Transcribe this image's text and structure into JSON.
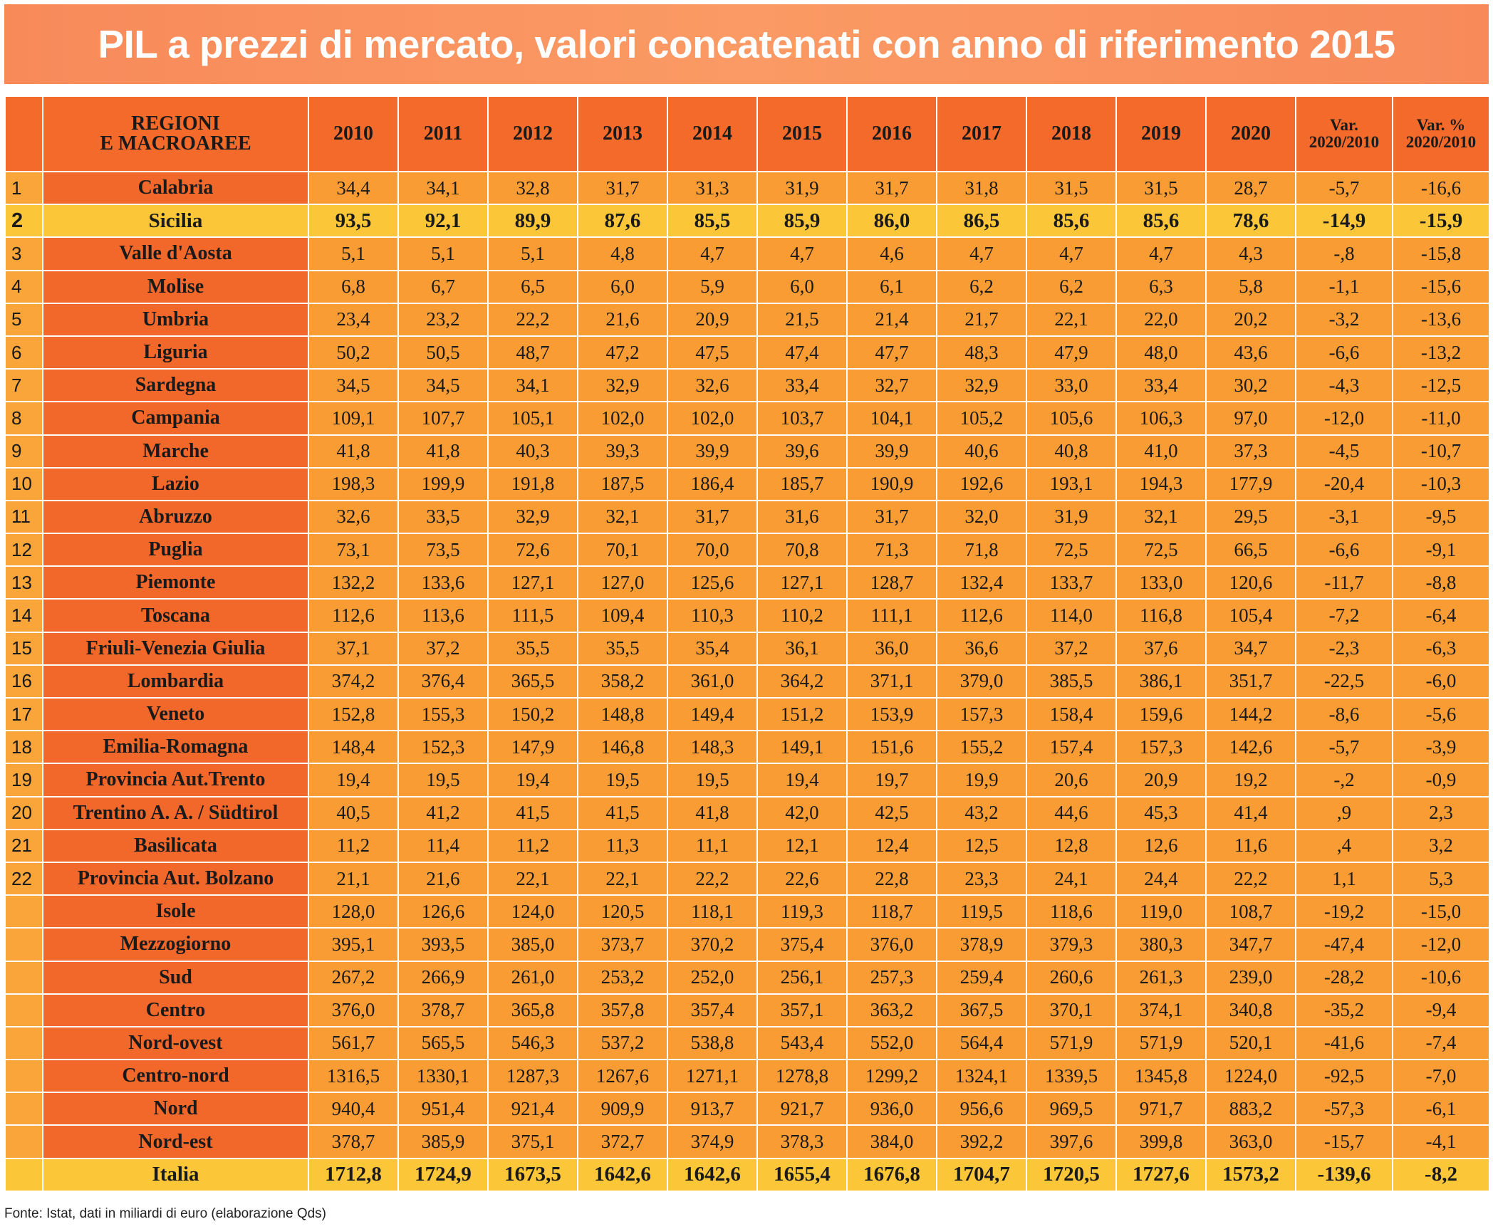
{
  "title": "PIL a prezzi di mercato, valori concatenati con anno di riferimento 2015",
  "source": "Fonte: Istat, dati in miliardi di euro (elaborazione Qds)",
  "colors": {
    "title_bg": "#fb9a64",
    "header_bg": "#f46a2a",
    "region_bg": "#f2682b",
    "value_bg": "#fa9c34",
    "highlight_bg": "#fbc739"
  },
  "chart_data": {
    "type": "table",
    "title": "PIL a prezzi di mercato, valori concatenati con anno di riferimento 2015",
    "columns": [
      "",
      "REGIONI\nE MACROAREE",
      "2010",
      "2011",
      "2012",
      "2013",
      "2014",
      "2015",
      "2016",
      "2017",
      "2018",
      "2019",
      "2020",
      "Var.\n2020/2010",
      "Var. %\n2020/2010"
    ],
    "rows": [
      {
        "idx": "1",
        "name": "Calabria",
        "values": [
          "34,4",
          "34,1",
          "32,8",
          "31,7",
          "31,3",
          "31,9",
          "31,7",
          "31,8",
          "31,5",
          "31,5",
          "28,7",
          "-5,7",
          "-16,6"
        ]
      },
      {
        "idx": "2",
        "name": "Sicilia",
        "highlight": true,
        "values": [
          "93,5",
          "92,1",
          "89,9",
          "87,6",
          "85,5",
          "85,9",
          "86,0",
          "86,5",
          "85,6",
          "85,6",
          "78,6",
          "-14,9",
          "-15,9"
        ]
      },
      {
        "idx": "3",
        "name": "Valle d'Aosta",
        "values": [
          "5,1",
          "5,1",
          "5,1",
          "4,8",
          "4,7",
          "4,7",
          "4,6",
          "4,7",
          "4,7",
          "4,7",
          "4,3",
          "-,8",
          "-15,8"
        ]
      },
      {
        "idx": "4",
        "name": "Molise",
        "values": [
          "6,8",
          "6,7",
          "6,5",
          "6,0",
          "5,9",
          "6,0",
          "6,1",
          "6,2",
          "6,2",
          "6,3",
          "5,8",
          "-1,1",
          "-15,6"
        ]
      },
      {
        "idx": "5",
        "name": "Umbria",
        "values": [
          "23,4",
          "23,2",
          "22,2",
          "21,6",
          "20,9",
          "21,5",
          "21,4",
          "21,7",
          "22,1",
          "22,0",
          "20,2",
          "-3,2",
          "-13,6"
        ]
      },
      {
        "idx": "6",
        "name": "Liguria",
        "values": [
          "50,2",
          "50,5",
          "48,7",
          "47,2",
          "47,5",
          "47,4",
          "47,7",
          "48,3",
          "47,9",
          "48,0",
          "43,6",
          "-6,6",
          "-13,2"
        ]
      },
      {
        "idx": "7",
        "name": "Sardegna",
        "values": [
          "34,5",
          "34,5",
          "34,1",
          "32,9",
          "32,6",
          "33,4",
          "32,7",
          "32,9",
          "33,0",
          "33,4",
          "30,2",
          "-4,3",
          "-12,5"
        ]
      },
      {
        "idx": "8",
        "name": "Campania",
        "values": [
          "109,1",
          "107,7",
          "105,1",
          "102,0",
          "102,0",
          "103,7",
          "104,1",
          "105,2",
          "105,6",
          "106,3",
          "97,0",
          "-12,0",
          "-11,0"
        ]
      },
      {
        "idx": "9",
        "name": "Marche",
        "values": [
          "41,8",
          "41,8",
          "40,3",
          "39,3",
          "39,9",
          "39,6",
          "39,9",
          "40,6",
          "40,8",
          "41,0",
          "37,3",
          "-4,5",
          "-10,7"
        ]
      },
      {
        "idx": "10",
        "name": "Lazio",
        "values": [
          "198,3",
          "199,9",
          "191,8",
          "187,5",
          "186,4",
          "185,7",
          "190,9",
          "192,6",
          "193,1",
          "194,3",
          "177,9",
          "-20,4",
          "-10,3"
        ]
      },
      {
        "idx": "11",
        "name": "Abruzzo",
        "values": [
          "32,6",
          "33,5",
          "32,9",
          "32,1",
          "31,7",
          "31,6",
          "31,7",
          "32,0",
          "31,9",
          "32,1",
          "29,5",
          "-3,1",
          "-9,5"
        ]
      },
      {
        "idx": "12",
        "name": "Puglia",
        "values": [
          "73,1",
          "73,5",
          "72,6",
          "70,1",
          "70,0",
          "70,8",
          "71,3",
          "71,8",
          "72,5",
          "72,5",
          "66,5",
          "-6,6",
          "-9,1"
        ]
      },
      {
        "idx": "13",
        "name": "Piemonte",
        "values": [
          "132,2",
          "133,6",
          "127,1",
          "127,0",
          "125,6",
          "127,1",
          "128,7",
          "132,4",
          "133,7",
          "133,0",
          "120,6",
          "-11,7",
          "-8,8"
        ]
      },
      {
        "idx": "14",
        "name": "Toscana",
        "values": [
          "112,6",
          "113,6",
          "111,5",
          "109,4",
          "110,3",
          "110,2",
          "111,1",
          "112,6",
          "114,0",
          "116,8",
          "105,4",
          "-7,2",
          "-6,4"
        ]
      },
      {
        "idx": "15",
        "name": "Friuli-Venezia Giulia",
        "values": [
          "37,1",
          "37,2",
          "35,5",
          "35,5",
          "35,4",
          "36,1",
          "36,0",
          "36,6",
          "37,2",
          "37,6",
          "34,7",
          "-2,3",
          "-6,3"
        ]
      },
      {
        "idx": "16",
        "name": "Lombardia",
        "values": [
          "374,2",
          "376,4",
          "365,5",
          "358,2",
          "361,0",
          "364,2",
          "371,1",
          "379,0",
          "385,5",
          "386,1",
          "351,7",
          "-22,5",
          "-6,0"
        ]
      },
      {
        "idx": "17",
        "name": "Veneto",
        "values": [
          "152,8",
          "155,3",
          "150,2",
          "148,8",
          "149,4",
          "151,2",
          "153,9",
          "157,3",
          "158,4",
          "159,6",
          "144,2",
          "-8,6",
          "-5,6"
        ]
      },
      {
        "idx": "18",
        "name": "Emilia-Romagna",
        "values": [
          "148,4",
          "152,3",
          "147,9",
          "146,8",
          "148,3",
          "149,1",
          "151,6",
          "155,2",
          "157,4",
          "157,3",
          "142,6",
          "-5,7",
          "-3,9"
        ]
      },
      {
        "idx": "19",
        "name": "Provincia Aut.Trento",
        "values": [
          "19,4",
          "19,5",
          "19,4",
          "19,5",
          "19,5",
          "19,4",
          "19,7",
          "19,9",
          "20,6",
          "20,9",
          "19,2",
          "-,2",
          "-0,9"
        ]
      },
      {
        "idx": "20",
        "name": "Trentino A. A. / Südtirol",
        "values": [
          "40,5",
          "41,2",
          "41,5",
          "41,5",
          "41,8",
          "42,0",
          "42,5",
          "43,2",
          "44,6",
          "45,3",
          "41,4",
          ",9",
          "2,3"
        ]
      },
      {
        "idx": "21",
        "name": "Basilicata",
        "values": [
          "11,2",
          "11,4",
          "11,2",
          "11,3",
          "11,1",
          "12,1",
          "12,4",
          "12,5",
          "12,8",
          "12,6",
          "11,6",
          ",4",
          "3,2"
        ]
      },
      {
        "idx": "22",
        "name": "Provincia Aut. Bolzano",
        "values": [
          "21,1",
          "21,6",
          "22,1",
          "22,1",
          "22,2",
          "22,6",
          "22,8",
          "23,3",
          "24,1",
          "24,4",
          "22,2",
          "1,1",
          "5,3"
        ]
      },
      {
        "idx": "",
        "name": "Isole",
        "values": [
          "128,0",
          "126,6",
          "124,0",
          "120,5",
          "118,1",
          "119,3",
          "118,7",
          "119,5",
          "118,6",
          "119,0",
          "108,7",
          "-19,2",
          "-15,0"
        ]
      },
      {
        "idx": "",
        "name": "Mezzogiorno",
        "values": [
          "395,1",
          "393,5",
          "385,0",
          "373,7",
          "370,2",
          "375,4",
          "376,0",
          "378,9",
          "379,3",
          "380,3",
          "347,7",
          "-47,4",
          "-12,0"
        ]
      },
      {
        "idx": "",
        "name": "Sud",
        "values": [
          "267,2",
          "266,9",
          "261,0",
          "253,2",
          "252,0",
          "256,1",
          "257,3",
          "259,4",
          "260,6",
          "261,3",
          "239,0",
          "-28,2",
          "-10,6"
        ]
      },
      {
        "idx": "",
        "name": "Centro",
        "values": [
          "376,0",
          "378,7",
          "365,8",
          "357,8",
          "357,4",
          "357,1",
          "363,2",
          "367,5",
          "370,1",
          "374,1",
          "340,8",
          "-35,2",
          "-9,4"
        ]
      },
      {
        "idx": "",
        "name": "Nord-ovest",
        "values": [
          "561,7",
          "565,5",
          "546,3",
          "537,2",
          "538,8",
          "543,4",
          "552,0",
          "564,4",
          "571,9",
          "571,9",
          "520,1",
          "-41,6",
          "-7,4"
        ]
      },
      {
        "idx": "",
        "name": "Centro-nord",
        "values": [
          "1316,5",
          "1330,1",
          "1287,3",
          "1267,6",
          "1271,1",
          "1278,8",
          "1299,2",
          "1324,1",
          "1339,5",
          "1345,8",
          "1224,0",
          "-92,5",
          "-7,0"
        ]
      },
      {
        "idx": "",
        "name": "Nord",
        "values": [
          "940,4",
          "951,4",
          "921,4",
          "909,9",
          "913,7",
          "921,7",
          "936,0",
          "956,6",
          "969,5",
          "971,7",
          "883,2",
          "-57,3",
          "-6,1"
        ]
      },
      {
        "idx": "",
        "name": "Nord-est",
        "values": [
          "378,7",
          "385,9",
          "375,1",
          "372,7",
          "374,9",
          "378,3",
          "384,0",
          "392,2",
          "397,6",
          "399,8",
          "363,0",
          "-15,7",
          "-4,1"
        ]
      },
      {
        "idx": "",
        "name": "Italia",
        "total": true,
        "values": [
          "1712,8",
          "1724,9",
          "1673,5",
          "1642,6",
          "1642,6",
          "1655,4",
          "1676,8",
          "1704,7",
          "1720,5",
          "1727,6",
          "1573,2",
          "-139,6",
          "-8,2"
        ]
      }
    ]
  }
}
